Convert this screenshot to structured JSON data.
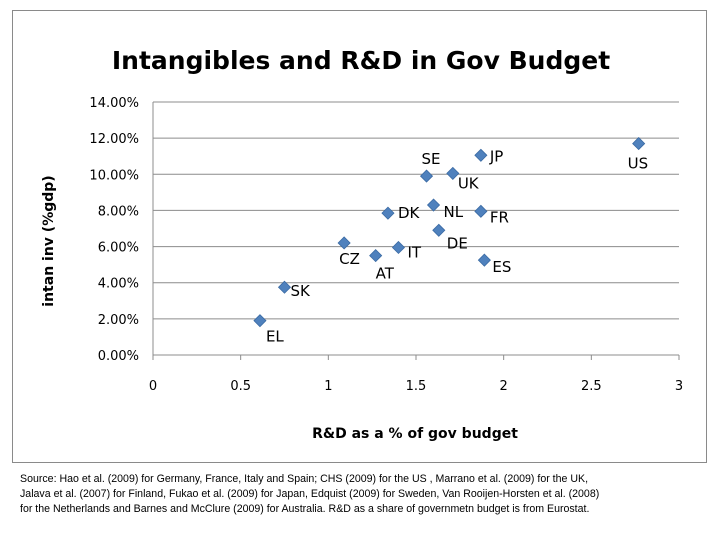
{
  "chart_data": {
    "type": "scatter",
    "title": "Intangibles and R&D in Gov Budget",
    "xlabel": "R&D as a % of gov budget",
    "ylabel": "intan inv (%gdp)",
    "xlim": [
      0,
      3
    ],
    "ylim": [
      0,
      14
    ],
    "x_ticks": [
      "0",
      "0.5",
      "1",
      "1.5",
      "2",
      "2.5",
      "3"
    ],
    "y_ticks": [
      "0.00%",
      "2.00%",
      "4.00%",
      "6.00%",
      "8.00%",
      "10.00%",
      "12.00%",
      "14.00%"
    ],
    "grid": "horizontal",
    "legend": "none",
    "marker": "diamond",
    "marker_color": "#4f81bd",
    "points": [
      {
        "label": "EL",
        "x": 0.61,
        "y": 1.9
      },
      {
        "label": "SK",
        "x": 0.75,
        "y": 3.75
      },
      {
        "label": "CZ",
        "x": 1.09,
        "y": 6.2
      },
      {
        "label": "AT",
        "x": 1.27,
        "y": 5.5
      },
      {
        "label": "IT",
        "x": 1.4,
        "y": 5.95
      },
      {
        "label": "DK",
        "x": 1.34,
        "y": 7.85
      },
      {
        "label": "NL",
        "x": 1.6,
        "y": 8.3
      },
      {
        "label": "DE",
        "x": 1.63,
        "y": 6.9
      },
      {
        "label": "SE",
        "x": 1.56,
        "y": 9.9
      },
      {
        "label": "UK",
        "x": 1.71,
        "y": 10.05
      },
      {
        "label": "JP",
        "x": 1.87,
        "y": 11.05
      },
      {
        "label": "FR",
        "x": 1.87,
        "y": 7.95
      },
      {
        "label": "ES",
        "x": 1.89,
        "y": 5.25
      },
      {
        "label": "US",
        "x": 2.77,
        "y": 11.7
      }
    ]
  },
  "footnote": {
    "source_lines": [
      "Source: Hao et al. (2009) for Germany, France, Italy and Spain; CHS (2009) for the US , Marrano et al. (2009) for the UK,",
      "Jalava et al. (2007) for Finland, Fukao et al. (2009) for Japan, Edquist (2009) for Sweden, Van Rooijen-Horsten et al. (2008)",
      "for the Netherlands and Barnes and McClure (2009) for Australia.  R&D as a share of governmetn budget is from Eurostat."
    ]
  }
}
